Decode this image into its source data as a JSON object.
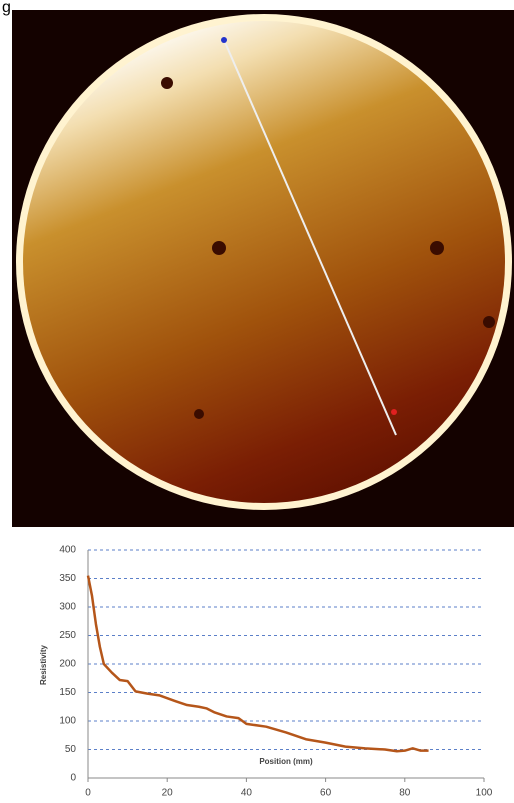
{
  "figure_label": "g",
  "chart_data": {
    "type": "line",
    "xlabel": "Position (mm)",
    "ylabel": "Resistivity",
    "x": [
      0,
      1,
      2,
      3,
      4,
      6,
      8,
      10,
      12,
      15,
      18,
      20,
      22,
      25,
      28,
      30,
      32,
      35,
      38,
      40,
      45,
      50,
      55,
      60,
      65,
      70,
      75,
      78,
      80,
      82,
      84,
      86
    ],
    "series": [
      {
        "color": "#b5561a",
        "values": [
          355,
          320,
          270,
          230,
          200,
          185,
          172,
          170,
          152,
          148,
          145,
          140,
          135,
          128,
          125,
          122,
          115,
          108,
          105,
          95,
          90,
          80,
          68,
          62,
          55,
          52,
          50,
          47,
          48,
          52,
          48,
          48
        ]
      }
    ],
    "xlim": [
      0,
      100
    ],
    "xticks": [
      0,
      20,
      40,
      60,
      80,
      100
    ],
    "ylim": [
      0,
      400
    ],
    "yticks": [
      0,
      50,
      100,
      150,
      200,
      250,
      300,
      350,
      400
    ],
    "grid": true
  }
}
